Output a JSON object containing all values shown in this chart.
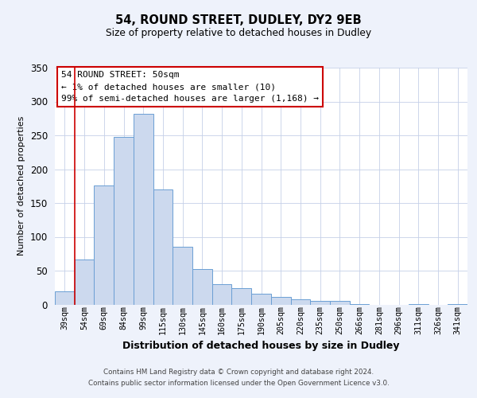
{
  "title": "54, ROUND STREET, DUDLEY, DY2 9EB",
  "subtitle": "Size of property relative to detached houses in Dudley",
  "xlabel": "Distribution of detached houses by size in Dudley",
  "ylabel": "Number of detached properties",
  "bar_labels": [
    "39sqm",
    "54sqm",
    "69sqm",
    "84sqm",
    "99sqm",
    "115sqm",
    "130sqm",
    "145sqm",
    "160sqm",
    "175sqm",
    "190sqm",
    "205sqm",
    "220sqm",
    "235sqm",
    "250sqm",
    "266sqm",
    "281sqm",
    "296sqm",
    "311sqm",
    "326sqm",
    "341sqm"
  ],
  "bar_values": [
    20,
    67,
    176,
    248,
    282,
    170,
    85,
    52,
    30,
    24,
    16,
    11,
    8,
    5,
    5,
    1,
    0,
    0,
    1,
    0,
    1
  ],
  "bar_color": "#ccd9ee",
  "bar_edge_color": "#6b9fd4",
  "annotation_box_text": "54 ROUND STREET: 50sqm\n← 1% of detached houses are smaller (10)\n99% of semi-detached houses are larger (1,168) →",
  "annotation_box_color": "#ffffff",
  "annotation_box_edge_color": "#cc0000",
  "vline_color": "#cc0000",
  "vline_x_index": 0.5,
  "ylim": [
    0,
    350
  ],
  "yticks": [
    0,
    50,
    100,
    150,
    200,
    250,
    300,
    350
  ],
  "bg_color": "#eef2fb",
  "plot_bg_color": "#ffffff",
  "footer_line1": "Contains HM Land Registry data © Crown copyright and database right 2024.",
  "footer_line2": "Contains public sector information licensed under the Open Government Licence v3.0."
}
